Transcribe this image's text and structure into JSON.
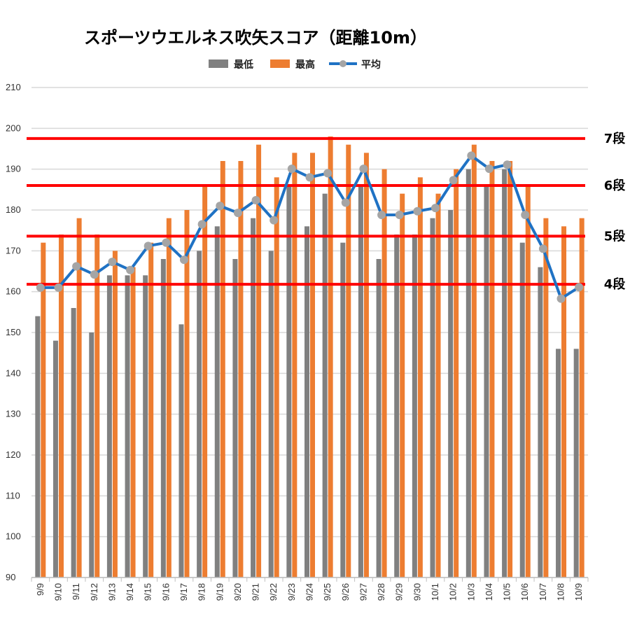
{
  "chart_data": {
    "type": "bar",
    "title": "スポーツウエルネス吹矢スコア（距離10m）",
    "xlabel": "",
    "ylabel": "",
    "ylim": [
      90,
      210
    ],
    "yticks": [
      90,
      100,
      110,
      120,
      130,
      140,
      150,
      160,
      170,
      180,
      190,
      200,
      210
    ],
    "grid": true,
    "legend_position": "top",
    "categories": [
      "9/9",
      "9/10",
      "9/11",
      "9/12",
      "9/13",
      "9/14",
      "9/15",
      "9/16",
      "9/17",
      "9/18",
      "9/19",
      "9/20",
      "9/21",
      "9/22",
      "9/23",
      "9/24",
      "9/25",
      "9/26",
      "9/27",
      "9/28",
      "9/29",
      "9/30",
      "10/1",
      "10/2",
      "10/3",
      "10/4",
      "10/5",
      "10/6",
      "10/7",
      "10/8",
      "10/9"
    ],
    "series": [
      {
        "name": "最低",
        "type": "bar",
        "color": "#808080",
        "values": [
          154,
          148,
          156,
          150,
          164,
          164,
          164,
          168,
          152,
          170,
          176,
          168,
          178,
          170,
          186,
          176,
          184,
          172,
          186,
          168,
          174,
          174,
          178,
          180,
          190,
          186,
          190,
          172,
          166,
          146,
          146
        ]
      },
      {
        "name": "最高",
        "type": "bar",
        "color": "#ED7D31",
        "values": [
          172,
          174,
          178,
          174,
          170,
          166,
          172,
          178,
          180,
          186,
          192,
          192,
          196,
          188,
          194,
          194,
          198,
          196,
          194,
          190,
          184,
          188,
          184,
          190,
          196,
          192,
          192,
          186,
          178,
          176,
          178
        ]
      },
      {
        "name": "平均",
        "type": "line",
        "color": "#1F72C4",
        "marker_color": "#A5A5A5",
        "values": [
          161,
          161,
          166.2,
          164.2,
          167.3,
          165.3,
          171.2,
          172,
          167.8,
          176.5,
          181,
          179.3,
          182.4,
          177.5,
          190.1,
          188,
          189,
          181.8,
          190.1,
          178.8,
          178.8,
          179.7,
          180.5,
          187.3,
          193.3,
          190.1,
          191.1,
          178.8,
          170.5,
          158.3,
          161.1
        ]
      }
    ],
    "reference_lines": [
      {
        "label": "7段",
        "value": 197.5,
        "color": "#FF0000"
      },
      {
        "label": "6段",
        "value": 186,
        "color": "#FF0000"
      },
      {
        "label": "5段",
        "value": 173.6,
        "color": "#FF0000"
      },
      {
        "label": "4段",
        "value": 161.8,
        "color": "#FF0000"
      }
    ]
  }
}
